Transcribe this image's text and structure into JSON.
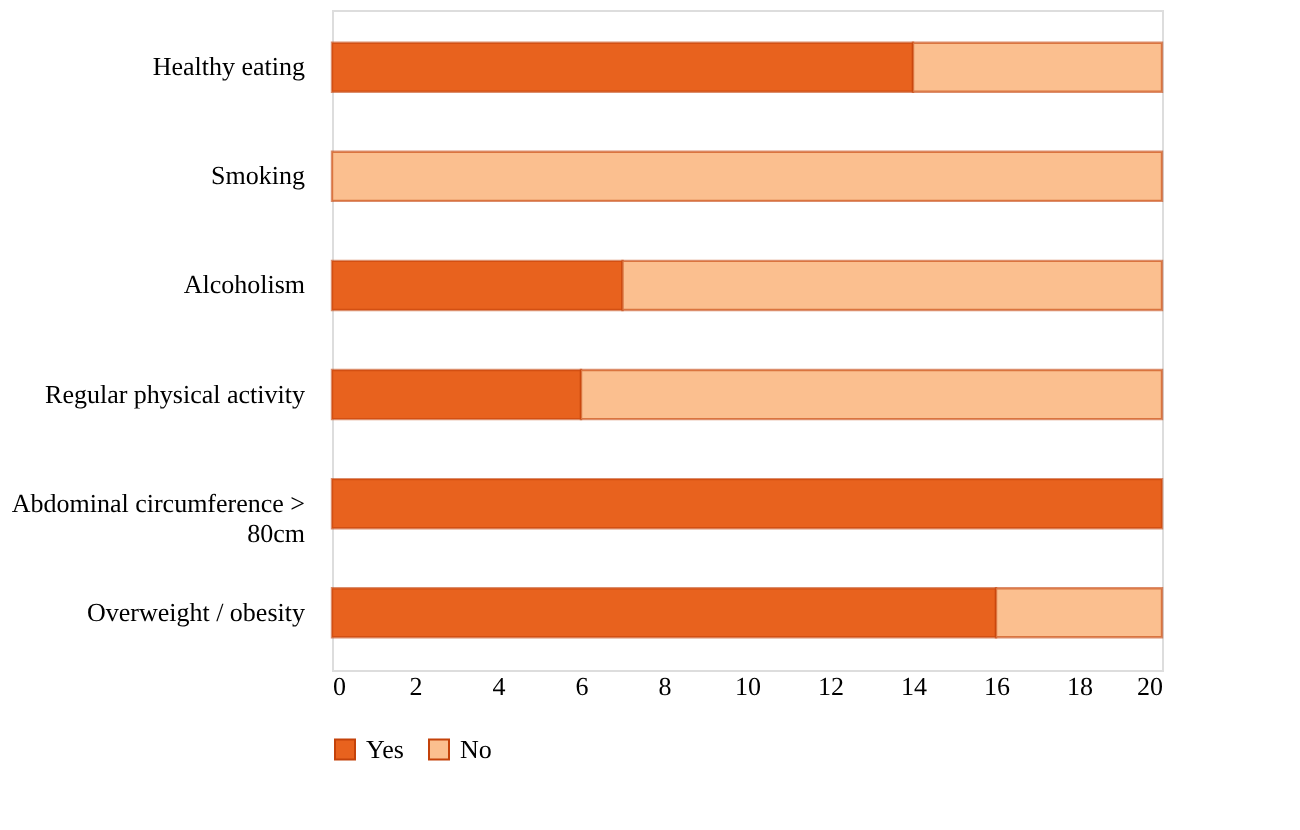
{
  "chart_data": {
    "type": "bar",
    "orientation": "horizontal",
    "stacked": true,
    "categories": [
      "Healthy eating",
      "Smoking",
      "Alcoholism",
      "Regular physical activity",
      "Abdominal circumference > 80cm",
      "Overweight / obesity"
    ],
    "series": [
      {
        "name": "Yes",
        "color": "#e8621e",
        "values": [
          14,
          0,
          7,
          6,
          20,
          16
        ]
      },
      {
        "name": "No",
        "color": "#fbbf8f",
        "values": [
          6,
          20,
          13,
          14,
          0,
          4
        ]
      }
    ],
    "xlim": [
      0,
      20
    ],
    "xticks": [
      0,
      2,
      4,
      6,
      8,
      10,
      12,
      14,
      16,
      18,
      20
    ],
    "grid": false,
    "legend": "bottom"
  }
}
